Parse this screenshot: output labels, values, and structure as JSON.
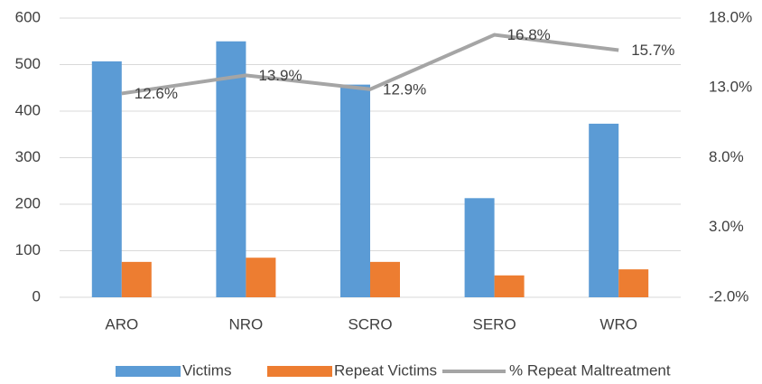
{
  "chart_data": {
    "type": "bar_line",
    "categories": [
      "ARO",
      "NRO",
      "SCRO",
      "SERO",
      "WRO"
    ],
    "series": [
      {
        "name": "Victims",
        "color": "#5b9bd5",
        "values": [
          507,
          550,
          457,
          213,
          373
        ]
      },
      {
        "name": "Repeat Victims",
        "color": "#ed7d31",
        "values": [
          76,
          85,
          76,
          47,
          60
        ]
      },
      {
        "name": "% Repeat Maltreatment",
        "color": "#a5a5a5",
        "axis": "y2",
        "values": [
          12.6,
          13.9,
          12.9,
          16.8,
          15.7
        ],
        "value_labels": [
          "12.6%",
          "13.9%",
          "12.9%",
          "16.8%",
          "15.7%"
        ]
      }
    ],
    "ylim": [
      0,
      600
    ],
    "yticks": [
      0,
      100,
      200,
      300,
      400,
      500,
      600
    ],
    "y2lim": [
      -2,
      18
    ],
    "y2ticks": [
      {
        "value": -2,
        "label": "-2.0%"
      },
      {
        "value": 3,
        "label": "3.0%"
      },
      {
        "value": 8,
        "label": "8.0%"
      },
      {
        "value": 13,
        "label": "13.0%"
      },
      {
        "value": 18,
        "label": "18.0%"
      }
    ],
    "grid": true,
    "legend": "bottom"
  }
}
